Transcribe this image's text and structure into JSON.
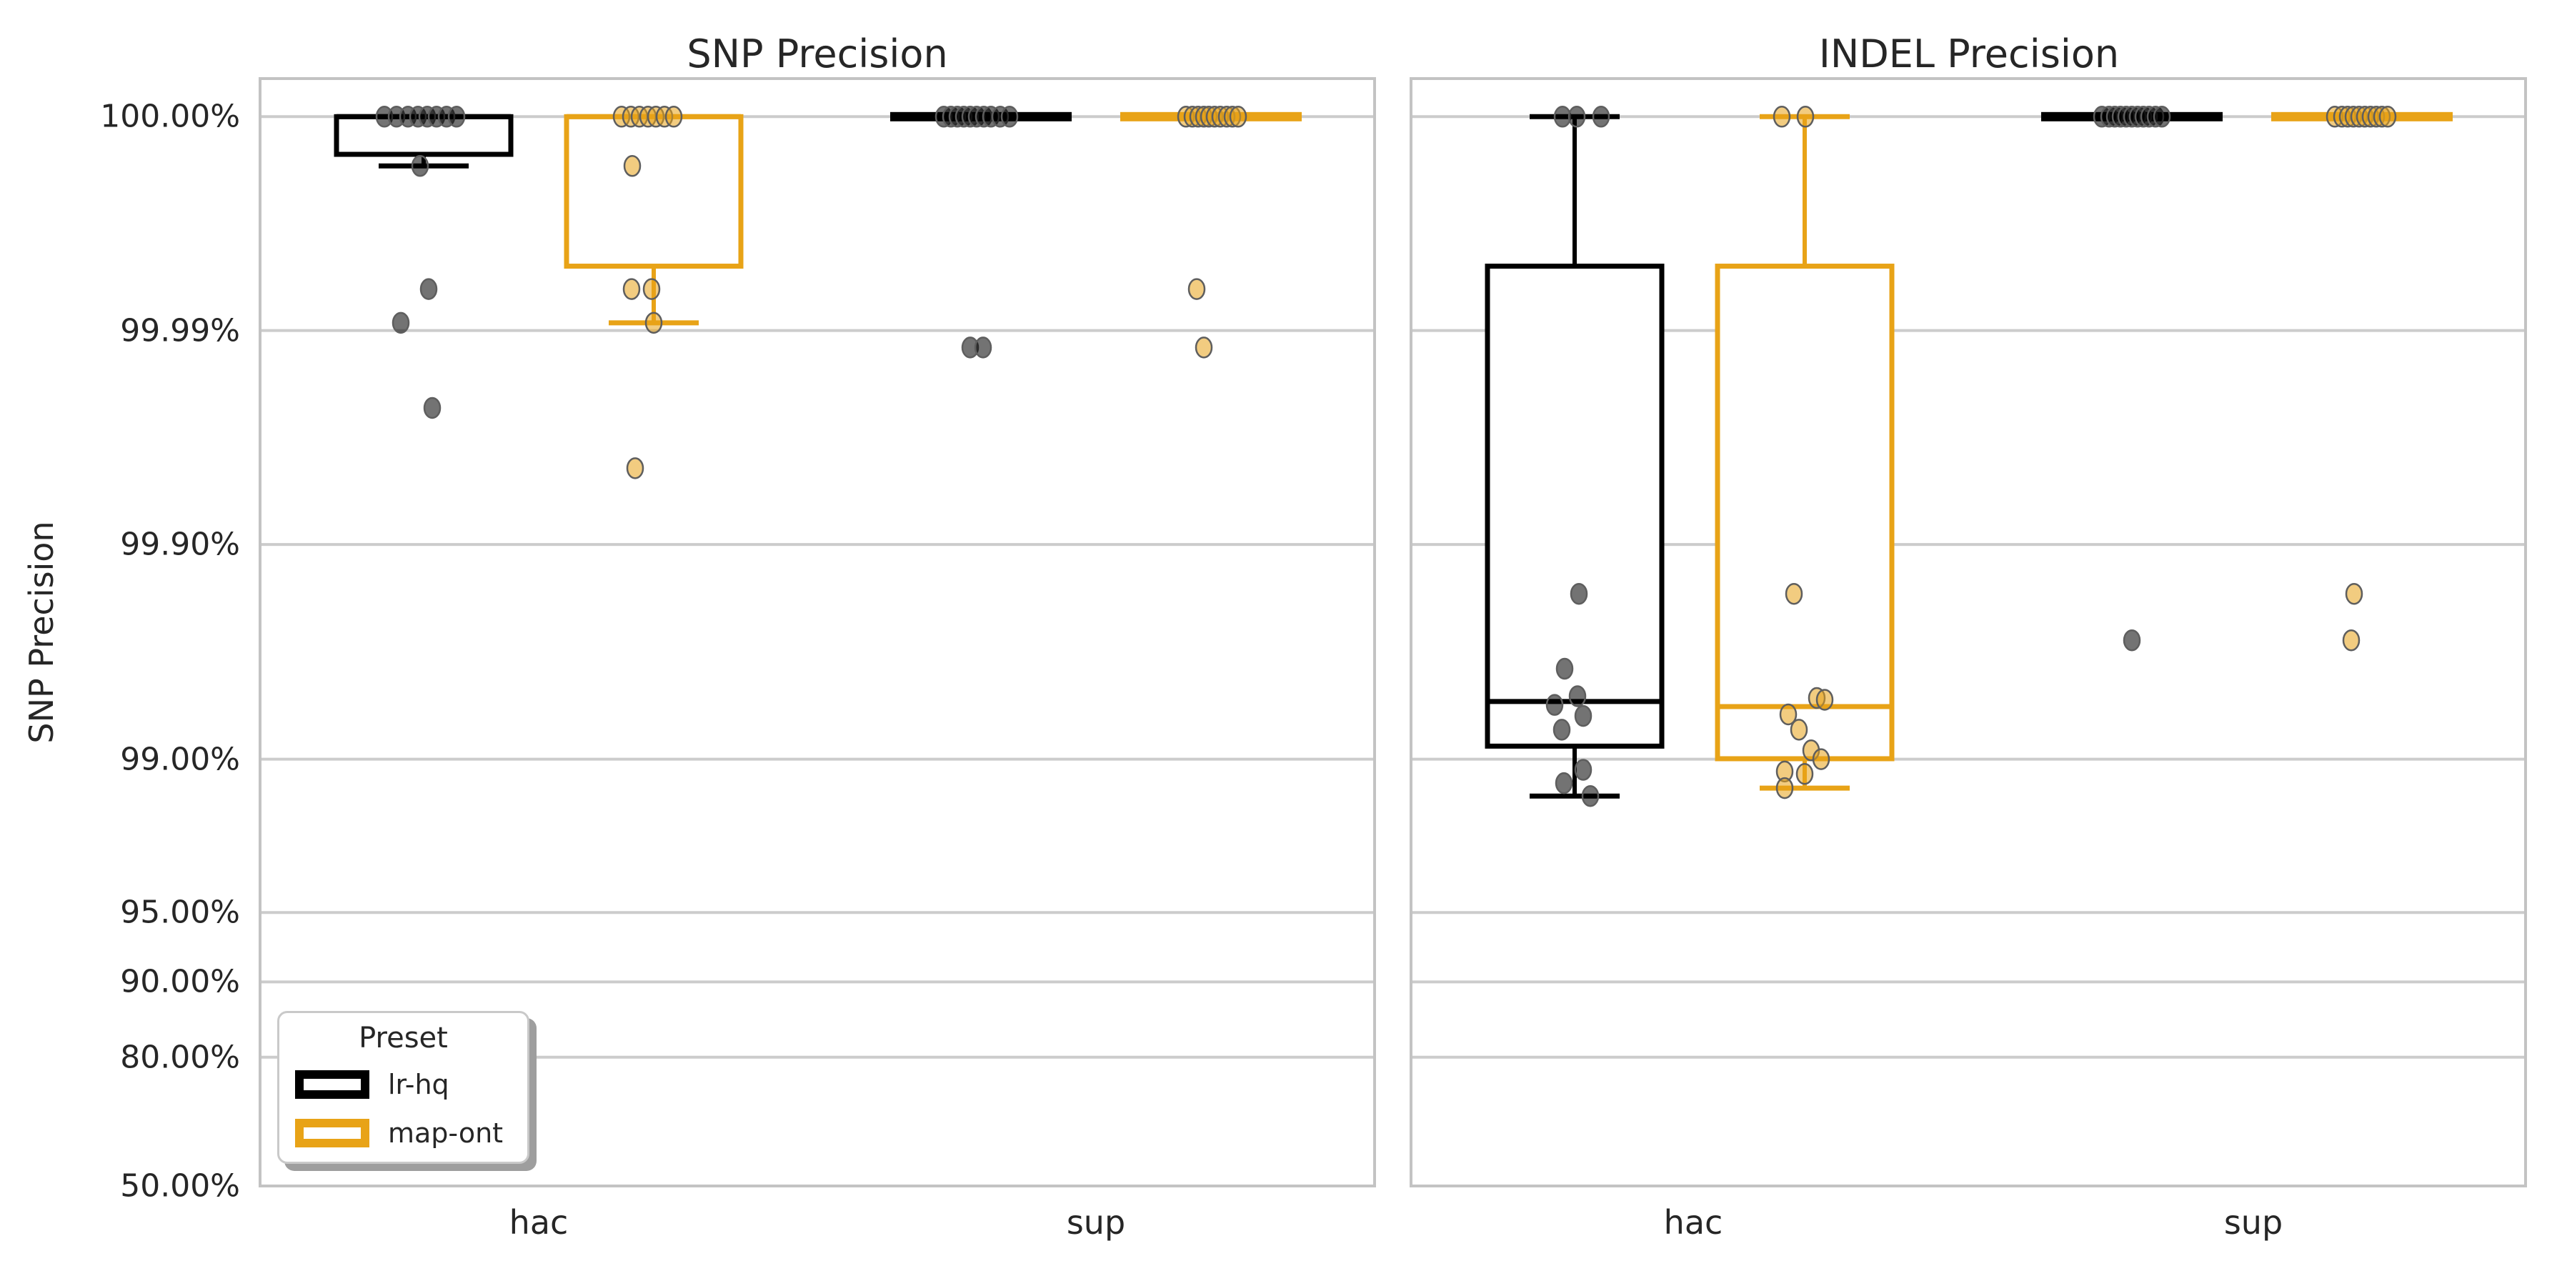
{
  "figure": {
    "background": "#ffffff",
    "text_color": "#262626",
    "grid_color": "#cccccc",
    "spine_color": "#c3c3c3",
    "box_fill": "#ffffff",
    "point_fill_opacity": 0.55,
    "point_stroke": "#5e5e5e",
    "y_axis_label": "SNP Precision"
  },
  "legend": {
    "title": "Preset",
    "entries": [
      {
        "label": "lr-hq",
        "color": "#000000"
      },
      {
        "label": "map-ont",
        "color": "#e8a317"
      }
    ]
  },
  "axes": {
    "y_tick_labels": [
      "100.00%",
      "99.99%",
      "99.90%",
      "99.00%",
      "95.00%",
      "90.00%",
      "80.00%",
      "50.00%"
    ],
    "y_tick_values": [
      99.999,
      99.99,
      99.9,
      99.0,
      95.0,
      90.0,
      80.0,
      50.0
    ],
    "x_tick_labels": [
      "hac",
      "sup",
      "hac",
      "sup"
    ]
  },
  "chart_data": [
    {
      "type": "box",
      "variant": "boxplot-with-stripplot",
      "title": "SNP Precision",
      "ylabel": "SNP Precision",
      "yscale": "logit-percent",
      "ylim": [
        50.0,
        99.99935
      ],
      "grid": true,
      "legend_position": "lower-left",
      "categories": [
        "hac",
        "sup"
      ],
      "series": [
        {
          "name": "lr-hq",
          "color": "#000000",
          "boxes": [
            {
              "category": "hac",
              "whisker_low": 99.9983,
              "q1": 99.9985,
              "median": 99.999,
              "q3": 99.999,
              "whisker_high": 99.999,
              "collapsed": false
            },
            {
              "category": "sup",
              "whisker_low": 99.999,
              "q1": 99.999,
              "median": 99.999,
              "q3": 99.999,
              "whisker_high": 99.999,
              "collapsed": true
            }
          ],
          "points": [
            [
              {
                "v": 99.999,
                "dx": -55
              },
              {
                "v": 99.999,
                "dx": -38
              },
              {
                "v": 99.999,
                "dx": -22
              },
              {
                "v": 99.999,
                "dx": -8
              },
              {
                "v": 99.999,
                "dx": 5
              },
              {
                "v": 99.999,
                "dx": 18
              },
              {
                "v": 99.999,
                "dx": 32
              },
              {
                "v": 99.999,
                "dx": 46
              },
              {
                "v": 99.9983,
                "dx": -5
              },
              {
                "v": 99.9936,
                "dx": 7
              },
              {
                "v": 99.9908,
                "dx": -32
              },
              {
                "v": 99.977,
                "dx": 12
              }
            ],
            [
              {
                "v": 99.999,
                "dx": -52
              },
              {
                "v": 99.999,
                "dx": -42
              },
              {
                "v": 99.999,
                "dx": -33
              },
              {
                "v": 99.999,
                "dx": -24
              },
              {
                "v": 99.999,
                "dx": -15
              },
              {
                "v": 99.999,
                "dx": -6
              },
              {
                "v": 99.999,
                "dx": 4
              },
              {
                "v": 99.999,
                "dx": 14
              },
              {
                "v": 99.999,
                "dx": 27
              },
              {
                "v": 99.999,
                "dx": 40
              },
              {
                "v": 99.988,
                "dx": -15
              },
              {
                "v": 99.988,
                "dx": 3
              }
            ]
          ]
        },
        {
          "name": "map-ont",
          "color": "#e8a317",
          "boxes": [
            {
              "category": "hac",
              "whisker_low": 99.9908,
              "q1": 99.995,
              "median": 99.999,
              "q3": 99.999,
              "whisker_high": 99.999,
              "collapsed": false
            },
            {
              "category": "sup",
              "whisker_low": 99.999,
              "q1": 99.999,
              "median": 99.999,
              "q3": 99.999,
              "whisker_high": 99.999,
              "collapsed": true
            }
          ],
          "points": [
            [
              {
                "v": 99.999,
                "dx": -45
              },
              {
                "v": 99.999,
                "dx": -32
              },
              {
                "v": 99.999,
                "dx": -20
              },
              {
                "v": 99.999,
                "dx": -8
              },
              {
                "v": 99.999,
                "dx": 3
              },
              {
                "v": 99.999,
                "dx": 15
              },
              {
                "v": 99.999,
                "dx": 28
              },
              {
                "v": 99.9983,
                "dx": -30
              },
              {
                "v": 99.9936,
                "dx": -31
              },
              {
                "v": 99.9936,
                "dx": -3
              },
              {
                "v": 99.9908,
                "dx": 0
              },
              {
                "v": 99.956,
                "dx": -26
              }
            ],
            [
              {
                "v": 99.999,
                "dx": -35
              },
              {
                "v": 99.999,
                "dx": -26
              },
              {
                "v": 99.999,
                "dx": -18
              },
              {
                "v": 99.999,
                "dx": -10
              },
              {
                "v": 99.999,
                "dx": -3
              },
              {
                "v": 99.999,
                "dx": 5
              },
              {
                "v": 99.999,
                "dx": 13
              },
              {
                "v": 99.999,
                "dx": 22
              },
              {
                "v": 99.999,
                "dx": 30
              },
              {
                "v": 99.999,
                "dx": 38
              },
              {
                "v": 99.9936,
                "dx": -20
              },
              {
                "v": 99.988,
                "dx": -10
              }
            ]
          ]
        }
      ]
    },
    {
      "type": "box",
      "variant": "boxplot-with-stripplot",
      "title": "INDEL Precision",
      "ylabel": "",
      "yscale": "logit-percent",
      "ylim": [
        50.0,
        99.99935
      ],
      "grid": true,
      "categories": [
        "hac",
        "sup"
      ],
      "series": [
        {
          "name": "lr-hq",
          "color": "#000000",
          "boxes": [
            {
              "category": "hac",
              "whisker_low": 98.52,
              "q1": 99.13,
              "median": 99.46,
              "q3": 99.995,
              "whisker_high": 99.999,
              "collapsed": false
            },
            {
              "category": "sup",
              "whisker_low": 99.999,
              "q1": 99.999,
              "median": 99.999,
              "q3": 99.999,
              "whisker_high": 99.999,
              "collapsed": true
            }
          ],
          "points": [
            [
              {
                "v": 99.999,
                "dx": -17
              },
              {
                "v": 99.999,
                "dx": 3
              },
              {
                "v": 99.999,
                "dx": 37
              },
              {
                "v": 99.83,
                "dx": 6
              },
              {
                "v": 99.62,
                "dx": -14
              },
              {
                "v": 99.49,
                "dx": 4
              },
              {
                "v": 99.44,
                "dx": -28
              },
              {
                "v": 99.37,
                "dx": 12
              },
              {
                "v": 99.27,
                "dx": -18
              },
              {
                "v": 98.88,
                "dx": 12
              },
              {
                "v": 98.71,
                "dx": -15
              },
              {
                "v": 98.52,
                "dx": 22
              }
            ],
            [
              {
                "v": 99.999,
                "dx": -42
              },
              {
                "v": 99.999,
                "dx": -32
              },
              {
                "v": 99.999,
                "dx": -24
              },
              {
                "v": 99.999,
                "dx": -16
              },
              {
                "v": 99.999,
                "dx": -8
              },
              {
                "v": 99.999,
                "dx": 0
              },
              {
                "v": 99.999,
                "dx": 8
              },
              {
                "v": 99.999,
                "dx": 16
              },
              {
                "v": 99.999,
                "dx": 24
              },
              {
                "v": 99.999,
                "dx": 33
              },
              {
                "v": 99.999,
                "dx": 42
              },
              {
                "v": 99.72,
                "dx": 0
              }
            ]
          ]
        },
        {
          "name": "map-ont",
          "color": "#e8a317",
          "boxes": [
            {
              "category": "hac",
              "whisker_low": 98.64,
              "q1": 99.005,
              "median": 99.43,
              "q3": 99.995,
              "whisker_high": 99.999,
              "collapsed": false
            },
            {
              "category": "sup",
              "whisker_low": 99.999,
              "q1": 99.999,
              "median": 99.999,
              "q3": 99.999,
              "whisker_high": 99.999,
              "collapsed": true
            }
          ],
          "points": [
            [
              {
                "v": 99.999,
                "dx": -32
              },
              {
                "v": 99.999,
                "dx": 1
              },
              {
                "v": 99.83,
                "dx": -15
              },
              {
                "v": 99.48,
                "dx": 17
              },
              {
                "v": 99.47,
                "dx": 28
              },
              {
                "v": 99.38,
                "dx": -23
              },
              {
                "v": 99.27,
                "dx": -8
              },
              {
                "v": 99.09,
                "dx": 9
              },
              {
                "v": 99.0,
                "dx": 23
              },
              {
                "v": 98.86,
                "dx": -28
              },
              {
                "v": 98.83,
                "dx": 0
              },
              {
                "v": 98.64,
                "dx": -28
              }
            ],
            [
              {
                "v": 99.999,
                "dx": -38
              },
              {
                "v": 99.999,
                "dx": -28
              },
              {
                "v": 99.999,
                "dx": -20
              },
              {
                "v": 99.999,
                "dx": -12
              },
              {
                "v": 99.999,
                "dx": -4
              },
              {
                "v": 99.999,
                "dx": 4
              },
              {
                "v": 99.999,
                "dx": 12
              },
              {
                "v": 99.999,
                "dx": 20
              },
              {
                "v": 99.999,
                "dx": 28
              },
              {
                "v": 99.999,
                "dx": 36
              },
              {
                "v": 99.83,
                "dx": -11
              },
              {
                "v": 99.72,
                "dx": -15
              }
            ]
          ]
        }
      ]
    }
  ]
}
